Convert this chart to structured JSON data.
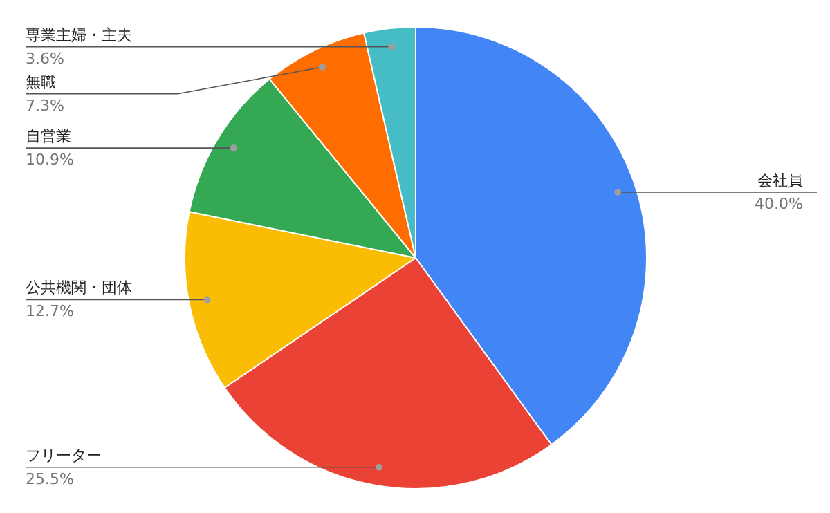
{
  "chart_data": {
    "type": "pie",
    "categories": [
      "会社員",
      "フリーター",
      "公共機関・団体",
      "自営業",
      "無職",
      "専業主婦・主夫"
    ],
    "values": [
      40.0,
      25.5,
      12.7,
      10.9,
      7.3,
      3.6
    ],
    "colors": [
      "#4285f4",
      "#ea4335",
      "#fbbc04",
      "#34a853",
      "#ff6d01",
      "#46bdc6"
    ],
    "value_labels": [
      "40.0%",
      "25.5%",
      "12.7%",
      "10.9%",
      "7.3%",
      "3.6%"
    ]
  }
}
